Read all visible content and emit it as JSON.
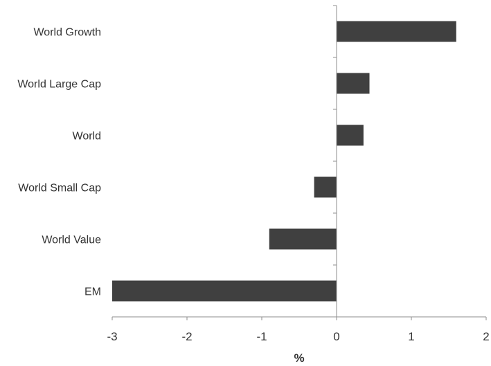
{
  "chart_data": {
    "type": "bar",
    "orientation": "horizontal",
    "categories": [
      "World Growth",
      "World Large Cap",
      "World",
      "World Small Cap",
      "World Value",
      "EM"
    ],
    "values": [
      1.6,
      0.44,
      0.36,
      -0.3,
      -0.9,
      -3.0
    ],
    "xlabel": "%",
    "ylabel": "",
    "xlim": [
      -3,
      2
    ],
    "x_ticks": [
      "-3",
      "-2",
      "-1",
      "0",
      "1",
      "2"
    ],
    "bar_color": "#404040",
    "axis_color": "#8c8c8c",
    "grid": false,
    "legend": "none"
  }
}
